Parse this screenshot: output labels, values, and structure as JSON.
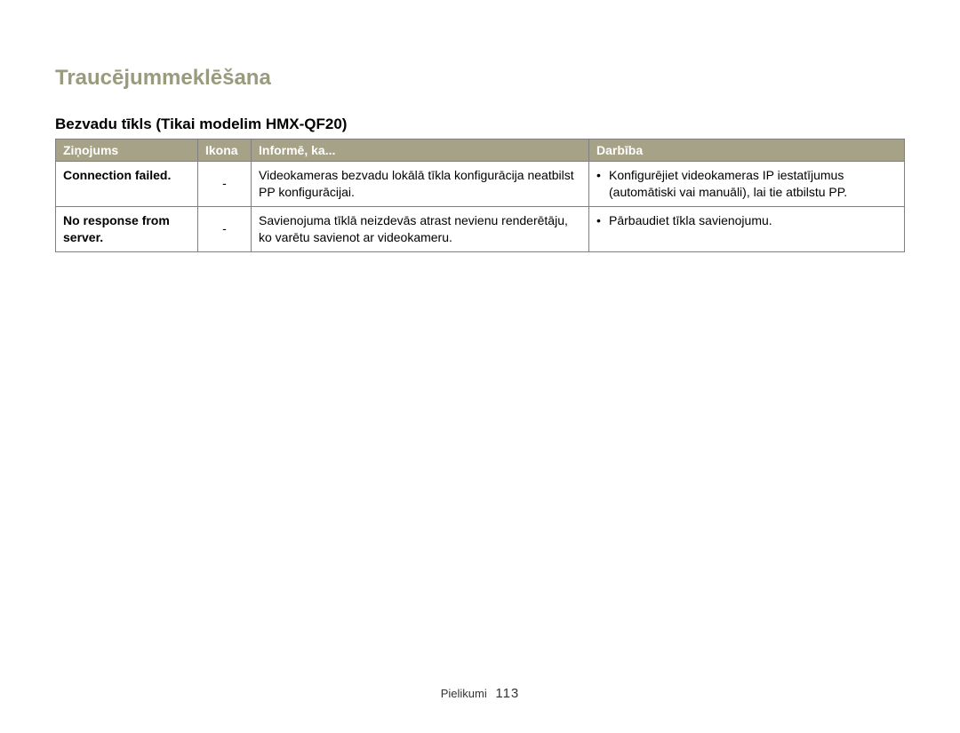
{
  "title": "Traucējummeklēšana",
  "section": "Bezvadu tīkls (Tikai modelim HMX-QF20)",
  "columns": {
    "msg": "Ziņojums",
    "icon": "Ikona",
    "info": "Informē, ka...",
    "action": "Darbība"
  },
  "rows": [
    {
      "msg": "Connection failed.",
      "icon": "-",
      "info": "Videokameras bezvadu lokālā tīkla konfigurācija neatbilst PP konfigurācijai.",
      "actions": [
        "Konfigurējiet videokameras IP iestatījumus (automātiski vai manuāli), lai tie atbilstu PP."
      ]
    },
    {
      "msg": "No response from server.",
      "icon": "-",
      "info": "Savienojuma tīklā neizdevās atrast nevienu renderētāju, ko varētu savienot ar videokameru.",
      "actions": [
        "Pārbaudiet tīkla savienojumu."
      ]
    }
  ],
  "footer": {
    "section": "Pielikumi",
    "page": "113"
  }
}
